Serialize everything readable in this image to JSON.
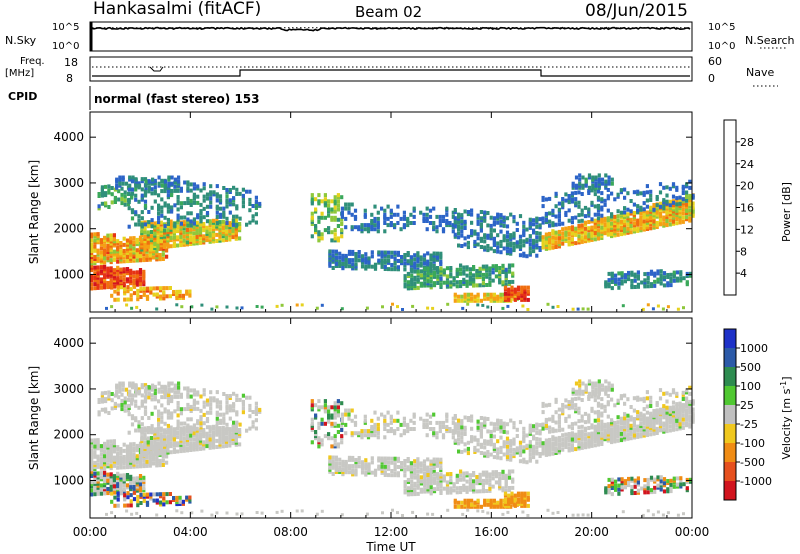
{
  "header": {
    "station": "Hankasalmi (fitACF)",
    "beam": "Beam 02",
    "date": "08/Jun/2015"
  },
  "top_panel": {
    "left_label": "N.Sky",
    "right_label": "N.Search",
    "left_ticks": [
      "10^5",
      "10^0"
    ],
    "right_ticks": [
      "10^5",
      "10^0"
    ],
    "n_sky_level_fraction": 0.78,
    "n_search_level_fraction": 0.8
  },
  "freq_panel": {
    "left_label_1": "Freq.",
    "left_label_2": "[MHz]",
    "left_ticks": [
      "18",
      "8"
    ],
    "right_label": "Nave",
    "right_ticks": [
      "60",
      "0"
    ]
  },
  "cpid": {
    "label": "CPID",
    "text": "normal (fast stereo) 153"
  },
  "chart_data": [
    {
      "type": "heatmap",
      "title": "",
      "parameter": "Power",
      "ylabel": "Slant Range [km]",
      "xlabel": "",
      "x_range_hours": [
        0,
        24
      ],
      "ylim": [
        180,
        4550
      ],
      "yticks": [
        1000,
        2000,
        3000,
        4000
      ],
      "xticks": [
        "00:00",
        "04:00",
        "08:00",
        "12:00",
        "16:00",
        "20:00",
        "00:00"
      ],
      "colorbar": {
        "label": "Power [dB]",
        "range": [
          0,
          32
        ],
        "ticks": [
          4,
          8,
          12,
          16,
          20,
          24,
          28
        ],
        "colors": [
          "#1e1edc",
          "#2c64c8",
          "#2f8f7a",
          "#3aa85a",
          "#8fc83a",
          "#e6d21e",
          "#f5a014",
          "#f06e0f",
          "#e63214",
          "#d2141e"
        ]
      }
    },
    {
      "type": "heatmap",
      "title": "",
      "parameter": "Velocity",
      "ylabel": "Slant Range [km]",
      "xlabel": "Time UT",
      "x_range_hours": [
        0,
        24
      ],
      "ylim": [
        180,
        4550
      ],
      "yticks": [
        1000,
        2000,
        3000,
        4000
      ],
      "xticks": [
        "00:00",
        "04:00",
        "08:00",
        "12:00",
        "16:00",
        "20:00",
        "00:00"
      ],
      "colorbar": {
        "label_main": "Velocity",
        "label_unit": "[m s",
        "label_exp": "-1",
        "label_close": "]",
        "ticks": [
          "1000",
          "500",
          "100",
          "25",
          "-25",
          "-100",
          "-500",
          "-1000"
        ],
        "colors": [
          "#1e32c8",
          "#2c5aa8",
          "#2e8c50",
          "#50c832",
          "#c0c0c0",
          "#f0c81e",
          "#f08c14",
          "#e6501e",
          "#d2141e"
        ]
      }
    }
  ]
}
